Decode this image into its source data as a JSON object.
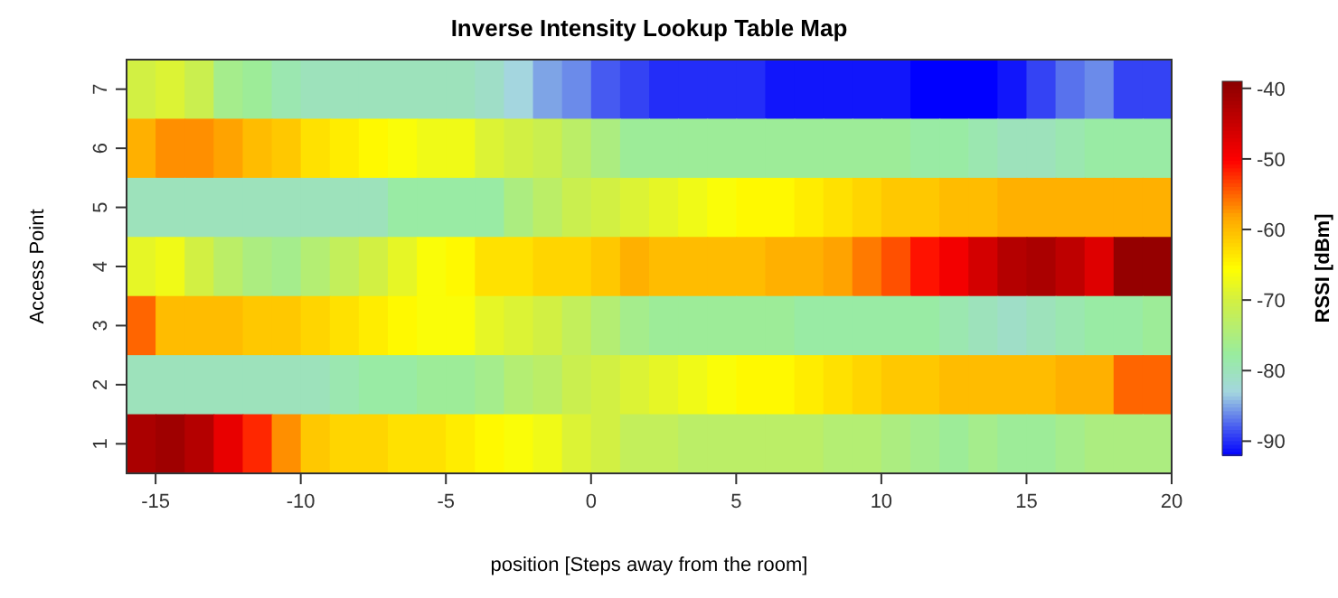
{
  "chart_data": {
    "type": "heatmap",
    "title": "Inverse Intensity Lookup Table Map",
    "xlabel": "position [Steps away from the room]",
    "ylabel": "Access Point",
    "clabel": "RSSI [dBm]",
    "x": [
      -15.5,
      -14.5,
      -13.5,
      -12.5,
      -11.5,
      -10.5,
      -9.5,
      -8.5,
      -7.5,
      -6.5,
      -5.5,
      -4.5,
      -3.5,
      -2.5,
      -1.5,
      -0.5,
      0.5,
      1.5,
      2.5,
      3.5,
      4.5,
      5.5,
      6.5,
      7.5,
      8.5,
      9.5,
      10.5,
      11.5,
      12.5,
      13.5,
      14.5,
      15.5,
      16.5,
      17.5,
      18.5,
      19.5
    ],
    "xlim": [
      -16,
      20
    ],
    "xticks": [
      -15,
      -10,
      -5,
      0,
      5,
      10,
      15,
      20
    ],
    "y_categories": [
      "7",
      "6",
      "5",
      "4",
      "3",
      "2",
      "1"
    ],
    "cells": [
      [
        -70,
        -69,
        -71,
        -76,
        -77,
        -79,
        -80,
        -80,
        -80,
        -80,
        -80,
        -80,
        -81,
        -83,
        -85,
        -86,
        -88,
        -89,
        -90,
        -90,
        -90,
        -90,
        -91,
        -91,
        -91,
        -91,
        -91,
        -92,
        -92,
        -92,
        -91,
        -89,
        -87,
        -86,
        -89,
        -89
      ],
      [
        -59,
        -57,
        -57,
        -58,
        -60,
        -61,
        -63,
        -64,
        -65,
        -66,
        -67,
        -67,
        -69,
        -70,
        -71,
        -73,
        -75,
        -77,
        -77,
        -77,
        -77,
        -77,
        -77,
        -77,
        -77,
        -77,
        -77,
        -78,
        -78,
        -79,
        -80,
        -80,
        -79,
        -78,
        -78,
        -78
      ],
      [
        -80,
        -80,
        -80,
        -80,
        -80,
        -80,
        -80,
        -80,
        -80,
        -78,
        -78,
        -78,
        -78,
        -75,
        -73,
        -71,
        -70,
        -69,
        -68,
        -67,
        -66,
        -65,
        -65,
        -64,
        -63,
        -62,
        -61,
        -61,
        -60,
        -60,
        -59,
        -59,
        -59,
        -59,
        -59,
        -59
      ],
      [
        -68,
        -67,
        -70,
        -73,
        -75,
        -76,
        -74,
        -72,
        -70,
        -68,
        -66,
        -65,
        -63,
        -63,
        -62,
        -62,
        -61,
        -59,
        -60,
        -60,
        -60,
        -60,
        -59,
        -59,
        -58,
        -56,
        -54,
        -51,
        -49,
        -46,
        -43,
        -42,
        -44,
        -47,
        -40,
        -40
      ],
      [
        -55,
        -60,
        -60,
        -60,
        -61,
        -61,
        -62,
        -63,
        -64,
        -65,
        -66,
        -66,
        -68,
        -69,
        -70,
        -72,
        -74,
        -76,
        -77,
        -77,
        -77,
        -77,
        -77,
        -78,
        -78,
        -78,
        -78,
        -78,
        -79,
        -80,
        -81,
        -80,
        -79,
        -78,
        -78,
        -77
      ],
      [
        -80,
        -80,
        -80,
        -80,
        -80,
        -80,
        -80,
        -79,
        -78,
        -78,
        -77,
        -77,
        -76,
        -74,
        -73,
        -71,
        -70,
        -69,
        -68,
        -67,
        -66,
        -65,
        -65,
        -64,
        -63,
        -62,
        -61,
        -61,
        -60,
        -60,
        -60,
        -60,
        -59,
        -59,
        -55,
        -55
      ],
      [
        -42,
        -41,
        -43,
        -48,
        -52,
        -57,
        -61,
        -62,
        -62,
        -63,
        -63,
        -64,
        -65,
        -66,
        -67,
        -69,
        -70,
        -72,
        -72,
        -73,
        -73,
        -73,
        -73,
        -73,
        -74,
        -74,
        -75,
        -76,
        -77,
        -76,
        -77,
        -77,
        -76,
        -75,
        -75,
        -75
      ]
    ],
    "clim": [
      -92,
      -39
    ],
    "cticks": [
      -40,
      -50,
      -60,
      -70,
      -80,
      -90
    ]
  }
}
